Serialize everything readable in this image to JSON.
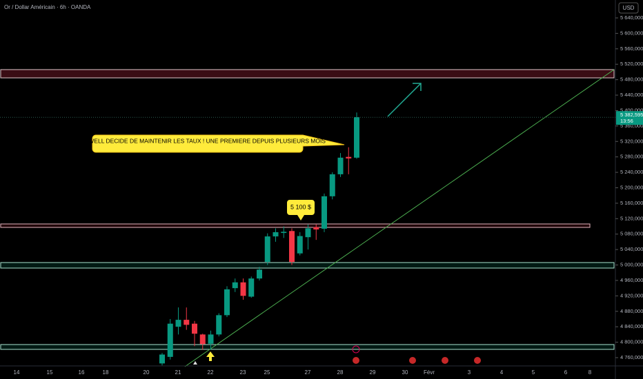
{
  "chart_data": {
    "type": "candlestick",
    "title": "Or / Dollar Américain · 6h · OANDA",
    "currency": "USD",
    "up_color": "#089981",
    "down_color": "#f23645",
    "candles": [
      {
        "open": 4745,
        "high": 4772,
        "low": 4740,
        "close": 4768
      },
      {
        "open": 4762,
        "high": 4860,
        "low": 4755,
        "close": 4848
      },
      {
        "open": 4840,
        "high": 4890,
        "low": 4820,
        "close": 4858
      },
      {
        "open": 4858,
        "high": 4890,
        "low": 4832,
        "close": 4845
      },
      {
        "open": 4848,
        "high": 4855,
        "low": 4790,
        "close": 4822
      },
      {
        "open": 4820,
        "high": 4822,
        "low": 4780,
        "close": 4795
      },
      {
        "open": 4796,
        "high": 4830,
        "low": 4780,
        "close": 4820
      },
      {
        "open": 4820,
        "high": 4875,
        "low": 4815,
        "close": 4870
      },
      {
        "open": 4870,
        "high": 4945,
        "low": 4865,
        "close": 4937
      },
      {
        "open": 4940,
        "high": 4965,
        "low": 4930,
        "close": 4955
      },
      {
        "open": 4955,
        "high": 4965,
        "low": 4910,
        "close": 4920
      },
      {
        "open": 4918,
        "high": 4970,
        "low": 4915,
        "close": 4965
      },
      {
        "open": 4965,
        "high": 4995,
        "low": 4960,
        "close": 4988
      },
      {
        "open": 5008,
        "high": 5082,
        "low": 5000,
        "close": 5074
      },
      {
        "open": 5074,
        "high": 5095,
        "low": 5060,
        "close": 5085
      },
      {
        "open": 5083,
        "high": 5100,
        "low": 5070,
        "close": 5086
      },
      {
        "open": 5088,
        "high": 5095,
        "low": 5000,
        "close": 5008
      },
      {
        "open": 5030,
        "high": 5085,
        "low": 5025,
        "close": 5075
      },
      {
        "open": 5072,
        "high": 5105,
        "low": 5040,
        "close": 5095
      },
      {
        "open": 5098,
        "high": 5105,
        "low": 5065,
        "close": 5092
      },
      {
        "open": 5094,
        "high": 5185,
        "low": 5085,
        "close": 5178
      },
      {
        "open": 5178,
        "high": 5240,
        "low": 5170,
        "close": 5235
      },
      {
        "open": 5235,
        "high": 5290,
        "low": 5228,
        "close": 5278
      },
      {
        "open": 5280,
        "high": 5305,
        "low": 5235,
        "close": 5276
      },
      {
        "open": 5278,
        "high": 5395,
        "low": 5275,
        "close": 5383
      }
    ],
    "ylim": [
      4740,
      5660
    ],
    "yticks": [
      {
        "value": 4760,
        "label": "4 760,000"
      },
      {
        "value": 4800,
        "label": "4 800,000"
      },
      {
        "value": 4840,
        "label": "4 840,000"
      },
      {
        "value": 4880,
        "label": "4 880,000"
      },
      {
        "value": 4920,
        "label": "4 920,000"
      },
      {
        "value": 4960,
        "label": "4 960,000"
      },
      {
        "value": 5000,
        "label": "5 000,000"
      },
      {
        "value": 5040,
        "label": "5 040,000"
      },
      {
        "value": 5080,
        "label": "5 080,000"
      },
      {
        "value": 5120,
        "label": "5 120,000"
      },
      {
        "value": 5160,
        "label": "5 160,000"
      },
      {
        "value": 5200,
        "label": "5 200,000"
      },
      {
        "value": 5240,
        "label": "5 240,000"
      },
      {
        "value": 5280,
        "label": "5 280,000"
      },
      {
        "value": 5320,
        "label": "5 320,000"
      },
      {
        "value": 5360,
        "label": "5 360,000"
      },
      {
        "value": 5400,
        "label": "5 400,000"
      },
      {
        "value": 5440,
        "label": "5 440,000"
      },
      {
        "value": 5480,
        "label": "5 480,000"
      },
      {
        "value": 5520,
        "label": "5 520,000"
      },
      {
        "value": 5560,
        "label": "5 560,000"
      },
      {
        "value": 5600,
        "label": "5 600,000"
      },
      {
        "value": 5640,
        "label": "5 640,000"
      }
    ],
    "x_labels": [
      "14",
      "15",
      "16",
      "18",
      "20",
      "21",
      "22",
      "23",
      "25",
      "27",
      "28",
      "29",
      "30",
      "Févr",
      "3",
      "4",
      "5",
      "6",
      "8"
    ],
    "last_price": {
      "value": 5382.595,
      "label": "5 382,595"
    },
    "countdown": "13:56",
    "annotations": [
      "POWELL DECIDE DE MAINTENIR LES TAUX ! UNE PREMIERE DEPUIS PLUSIEURS MOIS",
      "5 100 $"
    ]
  }
}
